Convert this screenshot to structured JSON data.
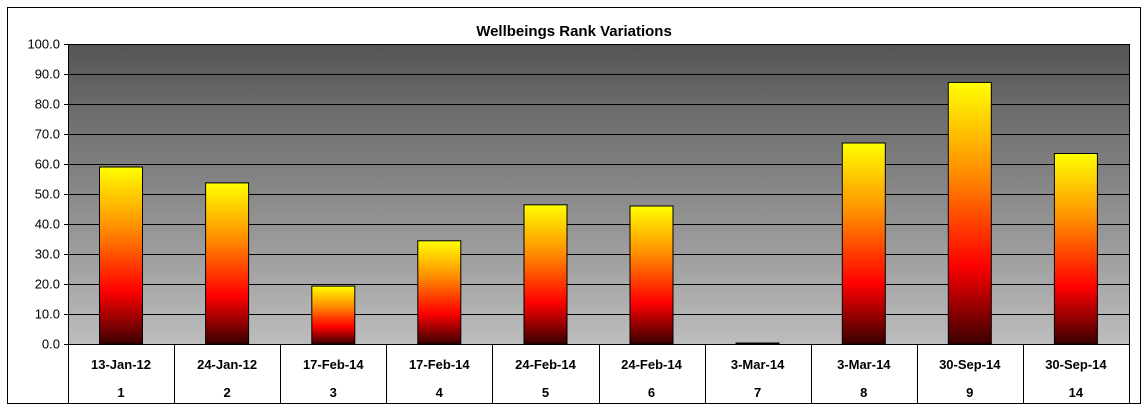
{
  "chart_data": {
    "type": "bar",
    "title": "Wellbeings Rank Variations",
    "xlabel": "",
    "ylabel": "",
    "ylim": [
      0,
      100
    ],
    "yticks": [
      "0.0",
      "10.0",
      "20.0",
      "30.0",
      "40.0",
      "50.0",
      "60.0",
      "70.0",
      "80.0",
      "90.0",
      "100.0"
    ],
    "grid": true,
    "legend": "none",
    "categories": [
      {
        "date": "13-Jan-12",
        "index": "1"
      },
      {
        "date": "24-Jan-12",
        "index": "2"
      },
      {
        "date": "17-Feb-14",
        "index": "3"
      },
      {
        "date": "17-Feb-14",
        "index": "4"
      },
      {
        "date": "24-Feb-14",
        "index": "5"
      },
      {
        "date": "24-Feb-14",
        "index": "6"
      },
      {
        "date": "3-Mar-14",
        "index": "7"
      },
      {
        "date": "3-Mar-14",
        "index": "8"
      },
      {
        "date": "30-Sep-14",
        "index": "9"
      },
      {
        "date": "30-Sep-14",
        "index": "14"
      }
    ],
    "values": [
      59.0,
      53.7,
      19.3,
      34.4,
      46.4,
      46.0,
      0.3,
      67.0,
      87.2,
      63.5
    ],
    "colors": {
      "bar_top": "#ffff00",
      "bar_mid": "#ff8c00",
      "bar_low": "#ff0000",
      "bar_bottom": "#3a0000",
      "plot_top": "#555555",
      "plot_bottom": "#bdbdbd"
    }
  }
}
